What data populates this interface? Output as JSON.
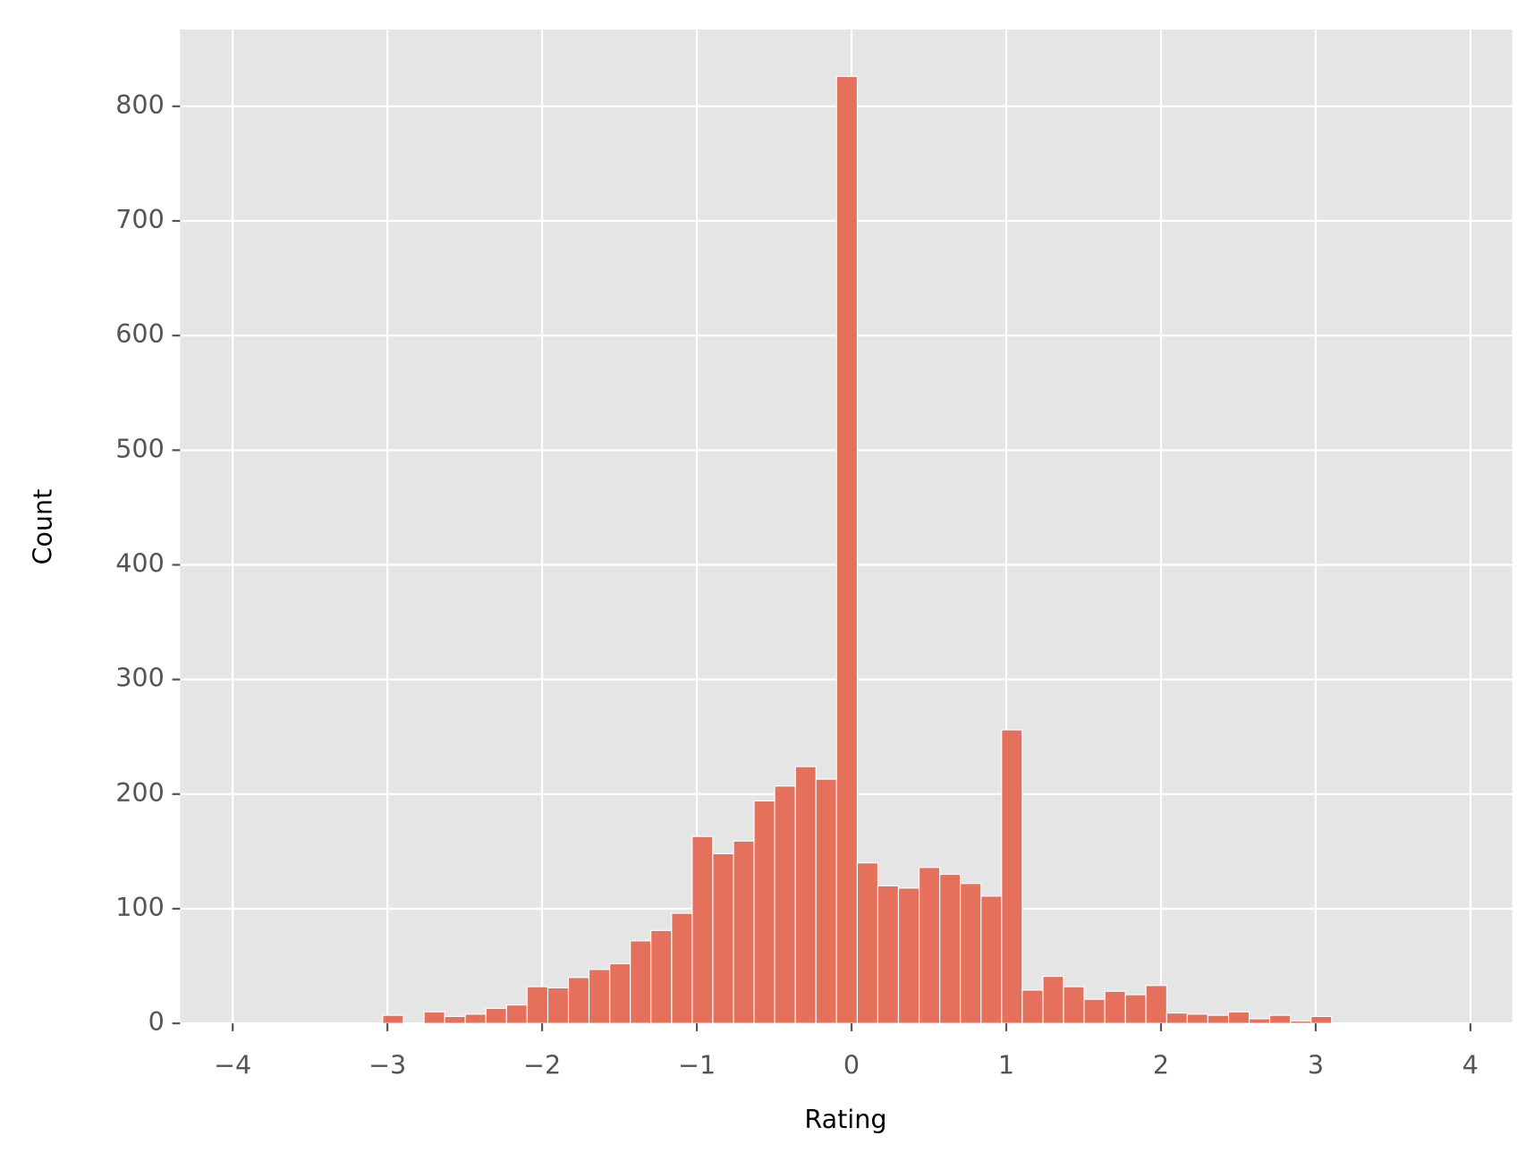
{
  "chart_data": {
    "type": "histogram",
    "x_label": "Rating",
    "y_label": "Count",
    "bins": [
      -3.03,
      -2.897,
      -2.763,
      -2.63,
      -2.497,
      -2.363,
      -2.23,
      -2.097,
      -1.963,
      -1.83,
      -1.697,
      -1.563,
      -1.43,
      -1.297,
      -1.163,
      -1.03,
      -0.897,
      -0.763,
      -0.63,
      -0.497,
      -0.363,
      -0.23,
      -0.097,
      0.037,
      0.17,
      0.303,
      0.437,
      0.57,
      0.703,
      0.837,
      0.97,
      1.103,
      1.237,
      1.37,
      1.503,
      1.637,
      1.77,
      1.903,
      2.037,
      2.17,
      2.303,
      2.437,
      2.57,
      2.703,
      2.837,
      2.97,
      3.103
    ],
    "values": [
      7,
      0,
      10,
      6,
      8,
      13,
      16,
      32,
      31,
      40,
      47,
      52,
      72,
      81,
      96,
      163,
      148,
      159,
      194,
      207,
      224,
      213,
      826,
      140,
      120,
      118,
      136,
      130,
      122,
      111,
      256,
      29,
      41,
      32,
      21,
      28,
      25,
      33,
      9,
      8,
      7,
      10,
      4,
      7,
      2,
      6
    ],
    "color": "#e5705c",
    "xlim": [
      -4.34,
      4.27
    ],
    "xticks": [
      {
        "value": -4,
        "label": "−4"
      },
      {
        "value": -3,
        "label": "−3"
      },
      {
        "value": -2,
        "label": "−2"
      },
      {
        "value": -1,
        "label": "−1"
      },
      0,
      1,
      2,
      3,
      4
    ],
    "ylim": [
      0,
      867
    ],
    "yticks": [
      0,
      100,
      200,
      300,
      400,
      500,
      600,
      700,
      800
    ],
    "grid": true
  }
}
